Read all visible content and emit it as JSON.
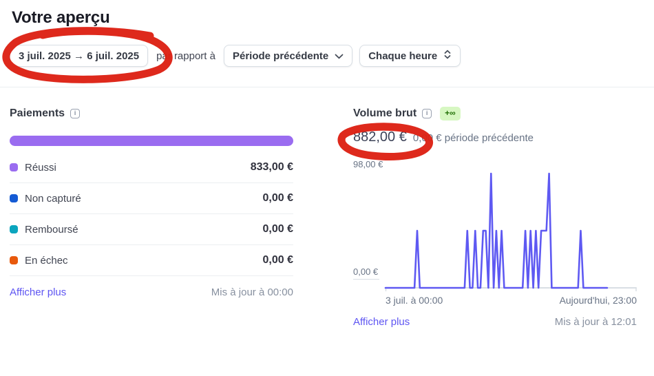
{
  "page": {
    "title": "Votre aperçu"
  },
  "theme": {
    "accent": "#5e55f2",
    "bar_color": "#9a6cf0",
    "badge_bg": "#d7f7c2",
    "badge_text": "#217005",
    "annotation": "#dd2013"
  },
  "toolbar": {
    "date_range": "3 juil. 2025 → 6 juil. 2025",
    "compare_label": "par rapport à",
    "compare_value": "Période précédente",
    "interval_value": "Chaque heure"
  },
  "payments": {
    "title": "Paiements",
    "info_glyph": "i",
    "rows": [
      {
        "label": "Réussi",
        "value": "833,00 €",
        "color": "#9a6cf0"
      },
      {
        "label": "Non capturé",
        "value": "0,00 €",
        "color": "#155bd4"
      },
      {
        "label": "Remboursé",
        "value": "0,00 €",
        "color": "#0ba5be"
      },
      {
        "label": "En échec",
        "value": "0,00 €",
        "color": "#e8590c"
      }
    ],
    "show_more": "Afficher plus",
    "updated": "Mis à jour à 00:00"
  },
  "gross_volume": {
    "title": "Volume brut",
    "info_glyph": "i",
    "badge": "+∞",
    "value": "882,00 €",
    "previous": "0,00 € période précédente",
    "show_more": "Afficher plus",
    "updated": "Mis à jour à 12:01"
  },
  "chart_data": {
    "type": "line",
    "title": "Volume brut",
    "ylim": [
      0,
      98
    ],
    "ylabel_top": "98,00 €",
    "ylabel_bottom": "0,00 €",
    "xlabel_left": "3 juil. à 00:00",
    "xlabel_right": "Aujourd'hui, 23:00",
    "x_total_points": 96,
    "x_unit": "hour",
    "grid": false,
    "legend": false,
    "series": [
      {
        "name": "Volume brut (période actuelle)",
        "color": "#5e59f2",
        "values": [
          0,
          0,
          0,
          0,
          0,
          0,
          0,
          0,
          0,
          0,
          0,
          0,
          49,
          0,
          0,
          0,
          0,
          0,
          0,
          0,
          0,
          0,
          0,
          0,
          0,
          0,
          0,
          0,
          0,
          0,
          0,
          49,
          0,
          0,
          49,
          0,
          0,
          49,
          49,
          0,
          98,
          0,
          49,
          0,
          49,
          0,
          0,
          0,
          0,
          0,
          0,
          0,
          0,
          49,
          0,
          49,
          0,
          49,
          0,
          49,
          49,
          49,
          98,
          0,
          0,
          0,
          0,
          0,
          0,
          0,
          0,
          0,
          0,
          0,
          49,
          0,
          0,
          0,
          0,
          0,
          0,
          0,
          0,
          0,
          0
        ]
      },
      {
        "name": "Période précédente",
        "color": "#d8dee4",
        "constant_value": 0
      }
    ]
  },
  "annotations": {
    "color": "#dd2013",
    "items": [
      {
        "name": "date-range-circle",
        "target": "date-range-button"
      },
      {
        "name": "gross-volume-circle",
        "target": "gross-volume-value"
      }
    ]
  }
}
